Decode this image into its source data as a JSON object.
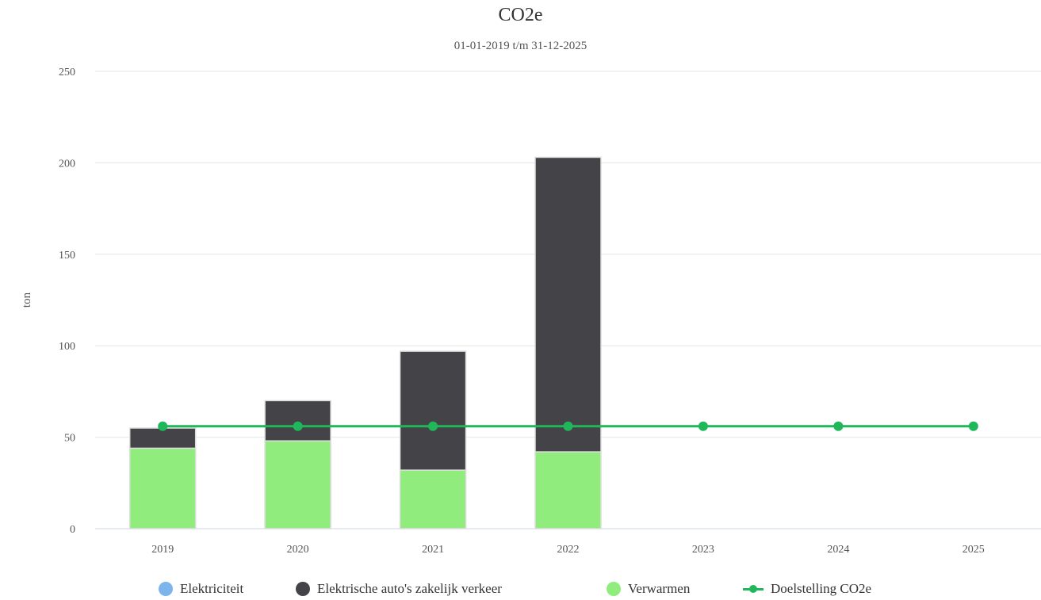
{
  "chart_data": {
    "type": "bar",
    "stacked": true,
    "title": "CO2e",
    "subtitle": "01-01-2019 t/m 31-12-2025",
    "ylabel": "ton",
    "ylim": [
      0,
      250
    ],
    "yticks": [
      0,
      50,
      100,
      150,
      200,
      250
    ],
    "categories": [
      "2019",
      "2020",
      "2021",
      "2022",
      "2023",
      "2024",
      "2025"
    ],
    "series": [
      {
        "name": "Elektriciteit",
        "type": "bar",
        "color": "#7cb5ec",
        "values": [
          0,
          0,
          0,
          0,
          null,
          null,
          null
        ]
      },
      {
        "name": "Elektrische auto's zakelijk verkeer",
        "type": "bar",
        "color": "#434348",
        "values": [
          11,
          22,
          65,
          161,
          null,
          null,
          null
        ]
      },
      {
        "name": "Verwarmen",
        "type": "bar",
        "color": "#90ed7d",
        "values": [
          44,
          48,
          32,
          42,
          null,
          null,
          null
        ]
      },
      {
        "name": "Doelstelling CO2e",
        "type": "line",
        "color": "#1fb75a",
        "values": [
          56,
          56,
          56,
          56,
          56,
          56,
          56
        ]
      }
    ],
    "legend_position": "bottom",
    "grid": true
  }
}
